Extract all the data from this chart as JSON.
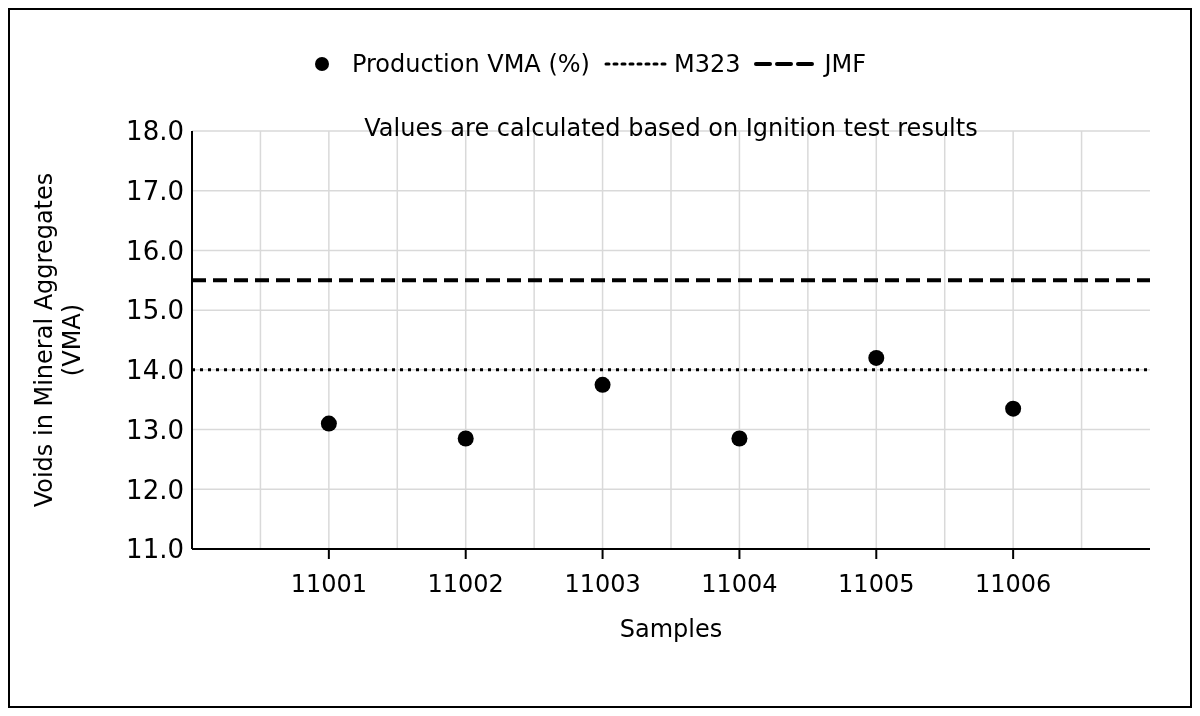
{
  "chart_data": {
    "type": "scatter",
    "xlabel": "Samples",
    "ylabel": "Voids in Mineral Aggregates (VMA)",
    "categories": [
      "11001",
      "11002",
      "11003",
      "11004",
      "11005",
      "11006"
    ],
    "series": [
      {
        "name": "Production VMA (%)",
        "color": "#000000",
        "values": [
          13.1,
          12.85,
          13.75,
          12.85,
          14.2,
          13.35
        ]
      }
    ],
    "ref_lines": [
      {
        "axis": "y",
        "value": 14.0,
        "label": "M323",
        "color": "#000000",
        "line_style": "dotted"
      },
      {
        "axis": "y",
        "value": 15.5,
        "label": "JMF",
        "color": "#000000",
        "line_style": "dashed"
      }
    ],
    "ylim": [
      11,
      18
    ],
    "yticks": [
      {
        "value": 11,
        "label": "11.0"
      },
      {
        "value": 12,
        "label": "12.0"
      },
      {
        "value": 13,
        "label": "13.0"
      },
      {
        "value": 14,
        "label": "14.0"
      },
      {
        "value": 15,
        "label": "15.0"
      },
      {
        "value": 16,
        "label": "16.0"
      },
      {
        "value": 17,
        "label": "17.0"
      },
      {
        "value": 18,
        "label": "18.0"
      }
    ],
    "annotations": [
      "Values are calculated based on Ignition test results"
    ],
    "grid": true,
    "legend": "top",
    "marker": "circle"
  }
}
